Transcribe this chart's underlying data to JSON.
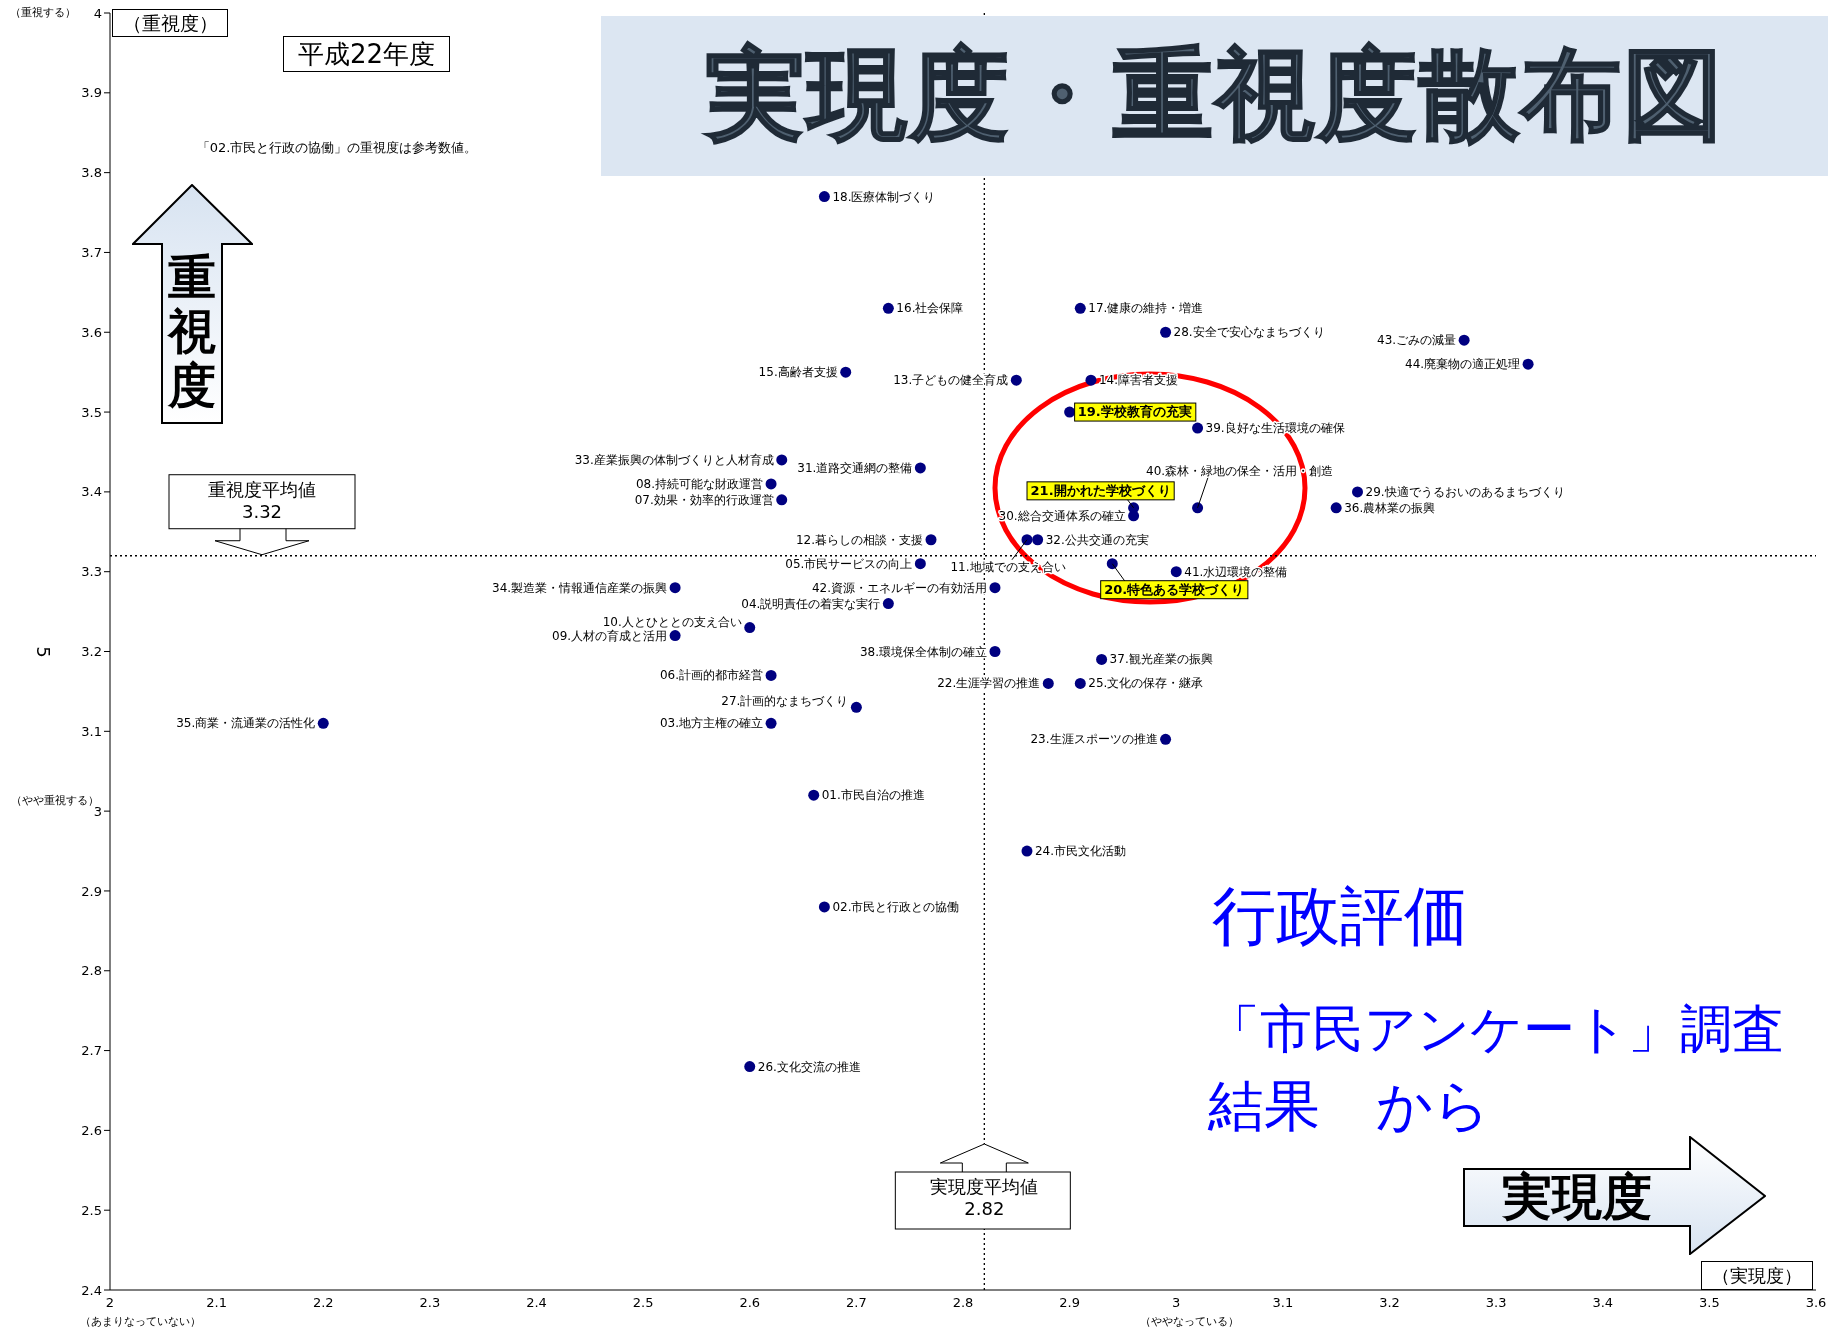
{
  "chart_data": {
    "type": "scatter",
    "title": "実現度・重視度散布図",
    "subtitle": "平成22年度",
    "xlabel": "（実現度）",
    "ylabel": "（重視度）",
    "xlim": [
      2,
      3.6
    ],
    "xticks": [
      2,
      2.1,
      2.2,
      2.3,
      2.4,
      2.5,
      2.6,
      2.7,
      2.8,
      2.9,
      3,
      3.1,
      3.2,
      3.3,
      3.4,
      3.5,
      3.6
    ],
    "ylim": [
      2.4,
      4
    ],
    "yticks": [
      2.4,
      2.5,
      2.6,
      2.7,
      2.8,
      2.9,
      3,
      3.1,
      3.2,
      3.3,
      3.4,
      3.5,
      3.6,
      3.7,
      3.8,
      3.9,
      4
    ],
    "grid": false,
    "legend": false,
    "marker": "circle",
    "series": [
      {
        "color": "#000080",
        "x": [
          2.67,
          2.73,
          2.91,
          2.99,
          3.27,
          3.33,
          2.69,
          2.85,
          2.92,
          3.02,
          2.63,
          2.76,
          2.62,
          2.63,
          3.17,
          3.15,
          3.02,
          2.96,
          2.77,
          2.86,
          2.87,
          2.76,
          3.0,
          2.53,
          2.83,
          2.73,
          2.6,
          2.53,
          2.83,
          2.93,
          2.62,
          2.88,
          2.91,
          2.7,
          2.2,
          2.62,
          2.99,
          2.66,
          2.86,
          2.67,
          2.6
        ],
        "values": [
          3.77,
          3.63,
          3.63,
          3.6,
          3.59,
          3.56,
          3.55,
          3.54,
          3.54,
          3.48,
          3.44,
          3.43,
          3.41,
          3.39,
          3.4,
          3.38,
          3.38,
          3.37,
          3.34,
          3.34,
          3.34,
          3.31,
          3.3,
          3.28,
          3.28,
          3.26,
          3.23,
          3.22,
          3.2,
          3.19,
          3.17,
          3.16,
          3.16,
          3.13,
          3.11,
          3.11,
          3.09,
          3.02,
          2.95,
          2.88,
          2.68
        ]
      },
      {
        "color": "#000080",
        "x": [
          2.9,
          2.96,
          2.94
        ],
        "values": [
          3.5,
          3.38,
          3.31
        ]
      }
    ],
    "ref_lines": [
      {
        "axis": "y",
        "value": 3.32,
        "label": "重視度平均値\n3.32",
        "color": "#000000",
        "line_style": "dotted"
      },
      {
        "axis": "x",
        "value": 2.82,
        "label": "実現度平均値\n2.82",
        "color": "#000000",
        "line_style": "dotted"
      }
    ],
    "annotations": [
      {
        "text": "18.医療体制づくり",
        "x": 2.67,
        "y": 3.77
      },
      {
        "text": "16.社会保障",
        "x": 2.73,
        "y": 3.63
      },
      {
        "text": "17.健康の維持・増進",
        "x": 2.91,
        "y": 3.63
      },
      {
        "text": "28.安全で安心なまちづくり",
        "x": 2.99,
        "y": 3.6
      },
      {
        "text": "43.ごみの減量",
        "x": 3.27,
        "y": 3.59
      },
      {
        "text": "44.廃棄物の適正処理",
        "x": 3.33,
        "y": 3.56
      },
      {
        "text": "15.高齢者支援",
        "x": 2.69,
        "y": 3.55
      },
      {
        "text": "13.子どもの健全育成",
        "x": 2.85,
        "y": 3.54
      },
      {
        "text": "14.障害者支援",
        "x": 2.92,
        "y": 3.54
      },
      {
        "text": "39.良好な生活環境の確保",
        "x": 3.02,
        "y": 3.48
      },
      {
        "text": "33.産業振興の体制づくりと人材育成",
        "x": 2.63,
        "y": 3.44
      },
      {
        "text": "31.道路交通網の整備",
        "x": 2.76,
        "y": 3.43
      },
      {
        "text": "08.持続可能な財政運営",
        "x": 2.62,
        "y": 3.41
      },
      {
        "text": "07.効果・効率的行政運営",
        "x": 2.63,
        "y": 3.39
      },
      {
        "text": "29.快適でうるおいのあるまちづくり",
        "x": 3.17,
        "y": 3.4
      },
      {
        "text": "36.農林業の振興",
        "x": 3.15,
        "y": 3.38
      },
      {
        "text": "40.森林・緑地の保全・活用・創造",
        "x": 3.02,
        "y": 3.38
      },
      {
        "text": "30.総合交通体系の確立",
        "x": 2.96,
        "y": 3.37
      },
      {
        "text": "12.暮らしの相談・支援",
        "x": 2.77,
        "y": 3.34
      },
      {
        "text": "11.地域での支え合い",
        "x": 2.86,
        "y": 3.34
      },
      {
        "text": "32.公共交通の充実",
        "x": 2.87,
        "y": 3.34
      },
      {
        "text": "05.市民サービスの向上",
        "x": 2.76,
        "y": 3.31
      },
      {
        "text": "41.水辺環境の整備",
        "x": 3.0,
        "y": 3.3
      },
      {
        "text": "34.製造業・情報通信産業の振興",
        "x": 2.53,
        "y": 3.28
      },
      {
        "text": "42.資源・エネルギーの有効活用",
        "x": 2.83,
        "y": 3.28
      },
      {
        "text": "04.説明責任の着実な実行",
        "x": 2.73,
        "y": 3.26
      },
      {
        "text": "10.人とひととの支え合い",
        "x": 2.6,
        "y": 3.23
      },
      {
        "text": "09.人材の育成と活用",
        "x": 2.53,
        "y": 3.22
      },
      {
        "text": "38.環境保全体制の確立",
        "x": 2.83,
        "y": 3.2
      },
      {
        "text": "37.観光産業の振興",
        "x": 2.93,
        "y": 3.19
      },
      {
        "text": "06.計画的都市経営",
        "x": 2.62,
        "y": 3.17
      },
      {
        "text": "22.生涯学習の推進",
        "x": 2.88,
        "y": 3.16
      },
      {
        "text": "25.文化の保存・継承",
        "x": 2.91,
        "y": 3.16
      },
      {
        "text": "27.計画的なまちづくり",
        "x": 2.7,
        "y": 3.13
      },
      {
        "text": "35.商業・流通業の活性化",
        "x": 2.2,
        "y": 3.11
      },
      {
        "text": "03.地方主権の確立",
        "x": 2.62,
        "y": 3.11
      },
      {
        "text": "23.生涯スポーツの推進",
        "x": 2.99,
        "y": 3.09
      },
      {
        "text": "01.市民自治の推進",
        "x": 2.66,
        "y": 3.02
      },
      {
        "text": "24.市民文化活動",
        "x": 2.86,
        "y": 2.95
      },
      {
        "text": "02.市民と行政との協働",
        "x": 2.67,
        "y": 2.88
      },
      {
        "text": "26.文化交流の推進",
        "x": 2.6,
        "y": 2.68
      },
      {
        "text": "19.学校教育の充実",
        "x": 2.9,
        "y": 3.5
      },
      {
        "text": "21.開かれた学校づくり",
        "x": 2.96,
        "y": 3.38
      },
      {
        "text": "20.特色ある学校づくり",
        "x": 2.94,
        "y": 3.31
      },
      "「02.市民と行政の協働」の重視度は参考数値。",
      "重視度",
      "実現度",
      "行政評価",
      "「市民アンケート」調査",
      "結果　から",
      "（重視する）",
      "（やや重視する）",
      "（あまりなっていない）",
      "（ややなっている）",
      "5"
    ]
  }
}
